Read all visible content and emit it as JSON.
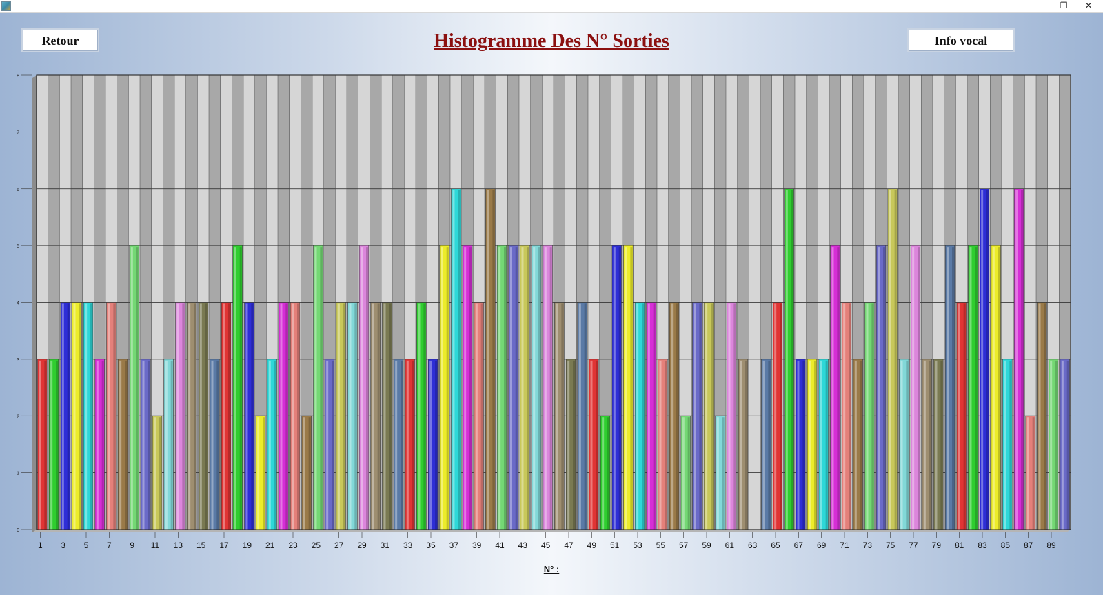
{
  "window": {
    "minimize_glyph": "–",
    "restore_glyph": "❐",
    "close_glyph": "✕"
  },
  "buttons": {
    "back": "Retour",
    "voice": "Info vocal"
  },
  "chart_data": {
    "type": "bar",
    "title": "Histogramme Des N° Sorties",
    "xlabel": "N° :",
    "ylabel": "",
    "ylim": [
      0,
      8
    ],
    "yticks": [
      0,
      1,
      2,
      3,
      4,
      5,
      6,
      7,
      8
    ],
    "grid": true,
    "legend": "none",
    "categories": [
      1,
      2,
      3,
      4,
      5,
      6,
      7,
      8,
      9,
      10,
      11,
      12,
      13,
      14,
      15,
      16,
      17,
      18,
      19,
      20,
      21,
      22,
      23,
      24,
      25,
      26,
      27,
      28,
      29,
      30,
      31,
      32,
      33,
      34,
      35,
      36,
      37,
      38,
      39,
      40,
      41,
      42,
      43,
      44,
      45,
      46,
      47,
      48,
      49,
      50,
      51,
      52,
      53,
      54,
      55,
      56,
      57,
      58,
      59,
      60,
      61,
      62,
      63,
      64,
      65,
      66,
      67,
      68,
      69,
      70,
      71,
      72,
      73,
      74,
      75,
      76,
      77,
      78,
      79,
      80,
      81,
      82,
      83,
      84,
      85,
      86,
      87,
      88,
      89,
      90
    ],
    "values": [
      3,
      3,
      4,
      4,
      4,
      3,
      4,
      3,
      5,
      3,
      2,
      3,
      4,
      4,
      4,
      3,
      4,
      5,
      4,
      2,
      3,
      4,
      4,
      2,
      5,
      3,
      4,
      4,
      5,
      4,
      4,
      3,
      3,
      4,
      3,
      5,
      6,
      5,
      4,
      6,
      5,
      5,
      5,
      5,
      5,
      4,
      3,
      4,
      3,
      2,
      5,
      5,
      4,
      4,
      3,
      4,
      2,
      4,
      4,
      2,
      4,
      3,
      0,
      3,
      4,
      6,
      3,
      3,
      3,
      5,
      4,
      3,
      4,
      5,
      6,
      3,
      5,
      3,
      3,
      5,
      4,
      5,
      6,
      5,
      3,
      6,
      2,
      4,
      3,
      3
    ],
    "tick_labels": [
      "1",
      "3",
      "5",
      "7",
      "9",
      "11",
      "13",
      "15",
      "17",
      "19",
      "21",
      "23",
      "25",
      "27",
      "29",
      "31",
      "33",
      "35",
      "37",
      "39",
      "41",
      "43",
      "45",
      "47",
      "49",
      "51",
      "53",
      "55",
      "57",
      "59",
      "61",
      "63",
      "65",
      "67",
      "69",
      "71",
      "73",
      "75",
      "77",
      "79",
      "81",
      "83",
      "85",
      "87",
      "89"
    ],
    "colors": [
      "#e03434",
      "#2fce2f",
      "#2e2ed6",
      "#ecec2a",
      "#2ed8d8",
      "#d62ed6",
      "#e4807a",
      "#9a7a48",
      "#74d874",
      "#6a6ac8",
      "#c8c85a",
      "#82d8d8",
      "#dc86dc",
      "#9e8e70",
      "#7a7a52",
      "#5a7aa6"
    ]
  }
}
